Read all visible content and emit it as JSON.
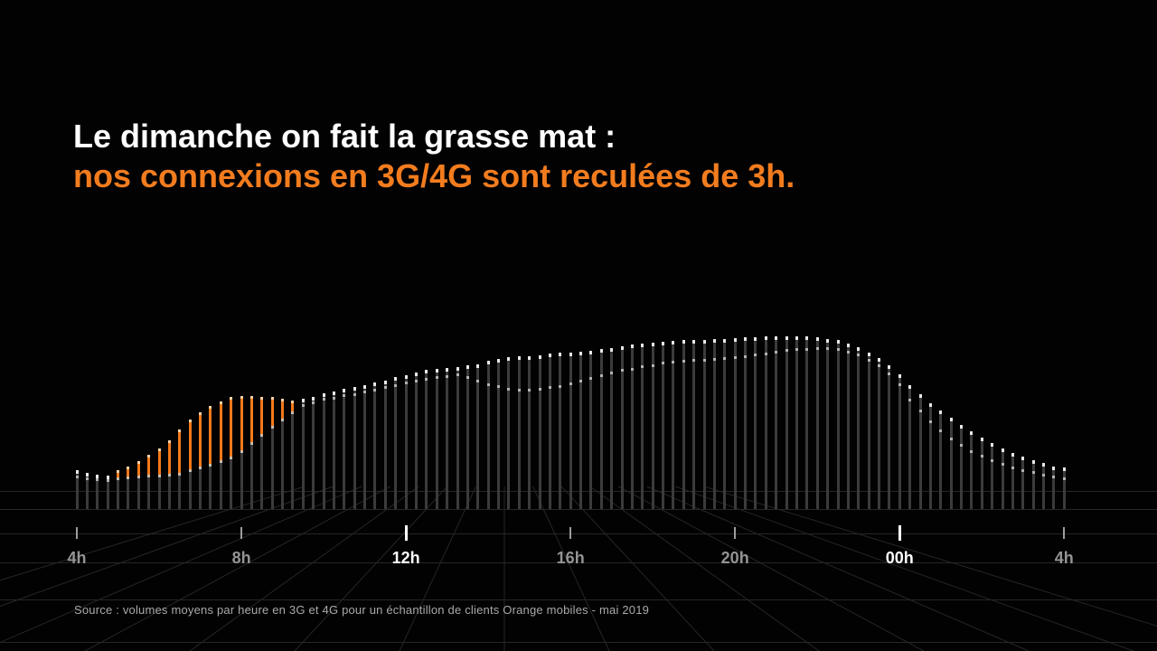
{
  "meta": {
    "background": "#020202",
    "accent_orange": "#f27c1e",
    "bar_orange": "#f5791a",
    "bar_orange_tip": "#ffd3a8",
    "bar_gray": "#3b3b3b",
    "dot_top": "#e8e8e8",
    "dot_low": "#b2b2b2",
    "dot_junction": "#c6beb2",
    "grid_line": "#262626",
    "tick_normal": "#9c9c9c",
    "tick_emphasis": "#ffffff",
    "label_normal": "#949494",
    "label_emphasis": "#ffffff"
  },
  "title": {
    "line1": "Le dimanche on fait la grasse mat :",
    "line2": "nos connexions en 3G/4G sont reculées de 3h."
  },
  "source": "Source : volumes moyens par heure en 3G et 4G pour un échantillon de clients Orange mobiles - mai 2019",
  "chart_data": {
    "type": "bar",
    "title": "Volumes moyens 3G/4G par heure (courbe haute vs courbe basse, décalée de 3h)",
    "value_scale": "relative units 0-100 (no numeric y-axis shown in image)",
    "x_start": "04:00",
    "x_step_minutes": 15,
    "x_axis": {
      "tick_labels": [
        {
          "label": "4h",
          "emphasis": false
        },
        {
          "label": "8h",
          "emphasis": false
        },
        {
          "label": "12h",
          "emphasis": true
        },
        {
          "label": "16h",
          "emphasis": false
        },
        {
          "label": "20h",
          "emphasis": false
        },
        {
          "label": "00h",
          "emphasis": true
        },
        {
          "label": "4h",
          "emphasis": false
        }
      ],
      "bars_per_tick": 16
    },
    "series": [
      {
        "name": "upper",
        "values": [
          22.7,
          21.1,
          20.1,
          19.3,
          22.2,
          24.3,
          27.7,
          31.1,
          35.0,
          39.9,
          46.2,
          51.7,
          56.1,
          59.5,
          62.4,
          64.5,
          65.5,
          65.3,
          65.0,
          64.5,
          63.7,
          62.9,
          63.7,
          65.0,
          66.6,
          67.9,
          69.2,
          70.5,
          71.8,
          73.1,
          74.4,
          76.0,
          77.5,
          79.1,
          80.2,
          80.9,
          81.7,
          82.2,
          82.8,
          83.8,
          85.4,
          86.7,
          87.5,
          88.0,
          88.5,
          89.0,
          89.6,
          90.1,
          90.3,
          90.9,
          91.6,
          92.4,
          93.2,
          94.0,
          94.8,
          95.6,
          96.1,
          96.6,
          97.1,
          97.4,
          97.7,
          97.9,
          98.2,
          98.4,
          98.7,
          99.0,
          99.2,
          99.5,
          99.7,
          100.0,
          100.0,
          99.7,
          99.2,
          98.4,
          97.4,
          95.8,
          93.5,
          90.6,
          87.2,
          83.0,
          77.8,
          71.5,
          66.1,
          61.1,
          56.7,
          52.5,
          48.6,
          44.9,
          41.3,
          38.1,
          35.2,
          32.6,
          30.3,
          28.2,
          26.4,
          24.8,
          23.8
        ]
      },
      {
        "name": "lower",
        "values": [
          19.1,
          18.3,
          17.8,
          17.2,
          18.0,
          18.5,
          18.8,
          19.1,
          19.3,
          19.8,
          20.6,
          22.2,
          23.8,
          25.6,
          27.7,
          30.0,
          33.4,
          37.9,
          42.6,
          47.3,
          51.7,
          56.1,
          60.8,
          62.4,
          64.0,
          65.0,
          66.1,
          67.1,
          68.4,
          69.7,
          70.8,
          72.1,
          73.4,
          74.7,
          75.7,
          76.8,
          77.5,
          78.1,
          77.0,
          74.9,
          72.8,
          71.3,
          70.2,
          69.7,
          69.5,
          70.0,
          70.8,
          71.8,
          73.1,
          74.7,
          76.2,
          77.8,
          79.4,
          80.7,
          81.7,
          82.8,
          83.8,
          84.9,
          85.6,
          86.2,
          86.7,
          86.9,
          87.2,
          87.7,
          88.3,
          89.0,
          89.8,
          90.6,
          91.4,
          92.2,
          92.7,
          93.2,
          93.5,
          93.5,
          92.9,
          91.6,
          89.6,
          86.9,
          83.6,
          78.6,
          72.6,
          63.7,
          57.2,
          51.2,
          46.0,
          41.5,
          37.6,
          34.2,
          31.1,
          28.7,
          26.6,
          24.8,
          23.2,
          21.7,
          20.4,
          19.3,
          18.5
        ]
      }
    ],
    "highlight": {
      "color": "#f5791a",
      "from_index": 4,
      "to_index": 21,
      "from_time": "05:00",
      "to_time": "09:15",
      "meaning": "segment between lower and upper series drawn in orange in the morning"
    },
    "ylim": [
      0,
      100
    ],
    "legend": "none",
    "grid": "perspective floor grid"
  }
}
